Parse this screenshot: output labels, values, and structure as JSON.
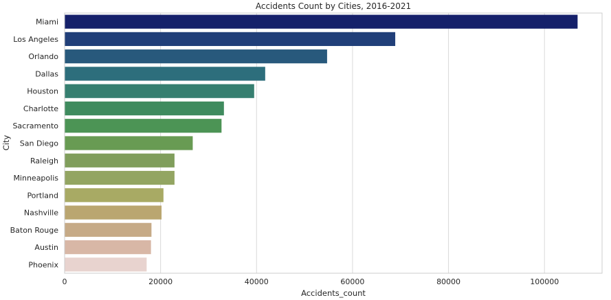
{
  "chart_data": {
    "type": "bar",
    "orientation": "horizontal",
    "title": "Accidents Count by Cities, 2016-2021",
    "xlabel": "Accidents_count",
    "ylabel": "City",
    "xlim": [
      0,
      112000
    ],
    "xticks": [
      0,
      20000,
      40000,
      60000,
      80000,
      100000
    ],
    "grid": true,
    "categories": [
      "Miami",
      "Los Angeles",
      "Orlando",
      "Dallas",
      "Houston",
      "Charlotte",
      "Sacramento",
      "San Diego",
      "Raleigh",
      "Minneapolis",
      "Portland",
      "Nashville",
      "Baton Rouge",
      "Austin",
      "Phoenix"
    ],
    "values": [
      106900,
      68900,
      54700,
      41800,
      39500,
      33200,
      32700,
      26700,
      22900,
      22900,
      20600,
      20200,
      18100,
      18000,
      17100
    ],
    "colors": [
      "#15206a",
      "#213f79",
      "#28597c",
      "#2d6e7c",
      "#367f70",
      "#3f8b5e",
      "#4c9455",
      "#689b53",
      "#809e5c",
      "#93a562",
      "#a8aa64",
      "#baa670",
      "#c6aa86",
      "#d8b7a6",
      "#e8d3cf"
    ]
  }
}
